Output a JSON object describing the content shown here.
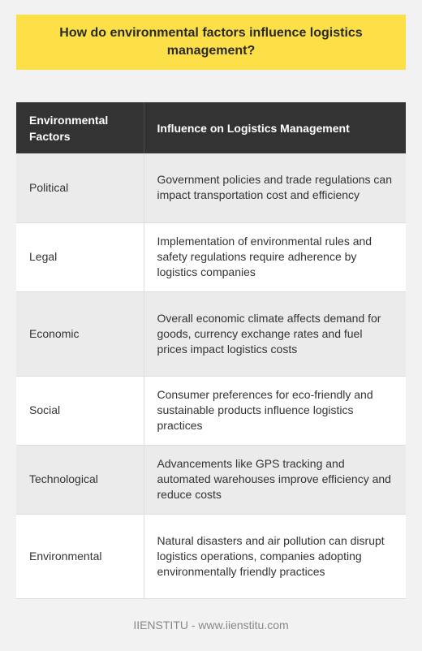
{
  "title": "How do environmental factors influence logistics management?",
  "table": {
    "headers": [
      "Environmental Factors",
      "Influence on Logistics Management"
    ],
    "rows": [
      {
        "factor": "Political",
        "influence": "Government policies and trade regulations can impact transportation cost and efficiency"
      },
      {
        "factor": "Legal",
        "influence": "Implementation of environmental rules and safety regulations require adherence by logistics companies"
      },
      {
        "factor": "Economic",
        "influence": "Overall economic climate affects demand for goods, currency exchange rates and fuel prices impact logistics costs"
      },
      {
        "factor": "Social",
        "influence": "Consumer preferences for eco-friendly and sustainable products influence logistics practices"
      },
      {
        "factor": "Technological",
        "influence": "Advancements like GPS tracking and automated warehouses improve efficiency and reduce costs"
      },
      {
        "factor": "Environmental",
        "influence": "Natural disasters and air pollution can disrupt logistics operations, companies adopting environmentally friendly practices"
      }
    ]
  },
  "footer": "IIENSTITU - www.iienstitu.com",
  "colors": {
    "title_background": "#fde047",
    "header_background": "#333333",
    "page_background": "#f2f2f2"
  }
}
